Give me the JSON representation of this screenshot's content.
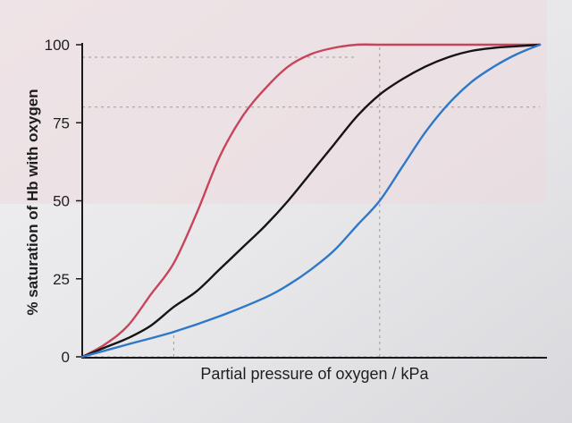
{
  "chart_data": {
    "type": "line",
    "title": "",
    "xlabel": "Partial pressure of oxygen / kPa",
    "ylabel": "% saturation of Hb with oxygen",
    "ylim": [
      0,
      100
    ],
    "xlim": [
      0,
      100
    ],
    "yticks": [
      "0",
      "25",
      "50",
      "75",
      "100"
    ],
    "grid": false,
    "series": [
      {
        "color": "#c8445c",
        "x": [
          0,
          5,
          10,
          15,
          20,
          25,
          30,
          35,
          40,
          45,
          50,
          55,
          60,
          65,
          70,
          80,
          90,
          100
        ],
        "values": [
          0,
          4,
          10,
          20,
          30,
          46,
          64,
          77,
          86,
          93,
          97,
          99,
          100,
          100,
          100,
          100,
          100,
          100
        ]
      },
      {
        "color": "#151515",
        "x": [
          0,
          5,
          10,
          15,
          20,
          25,
          30,
          35,
          40,
          45,
          50,
          55,
          60,
          65,
          70,
          75,
          80,
          85,
          90,
          95,
          100
        ],
        "values": [
          0,
          3,
          6,
          10,
          16,
          21,
          28,
          35,
          42,
          50,
          59,
          68,
          77,
          84,
          89,
          93,
          96,
          98,
          99,
          99.5,
          100
        ]
      },
      {
        "color": "#2f78c8",
        "x": [
          0,
          10,
          20,
          30,
          40,
          45,
          50,
          55,
          60,
          65,
          70,
          75,
          80,
          85,
          90,
          95,
          100
        ],
        "values": [
          0,
          4,
          8,
          13,
          19,
          23,
          28,
          34,
          42,
          50,
          61,
          72,
          81,
          88,
          93,
          97,
          100
        ]
      }
    ]
  }
}
